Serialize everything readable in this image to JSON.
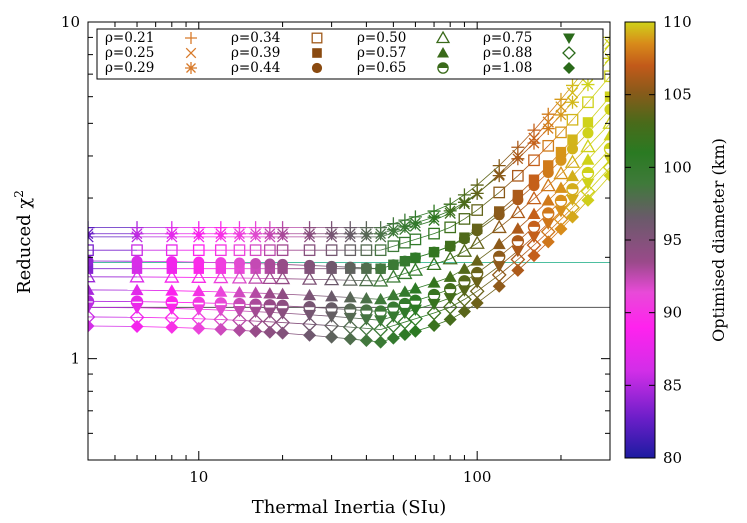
{
  "chart_data": {
    "type": "scatter",
    "xlabel": "Thermal Inertia (SIu)",
    "ylabel_main": "Reduced χ",
    "ylabel_sup": "2",
    "xscale": "log",
    "yscale": "log",
    "xlim": [
      4,
      300
    ],
    "ylim": [
      0.5,
      10
    ],
    "x_ticks": [
      {
        "value": 10,
        "label": "10"
      },
      {
        "value": 100,
        "label": "100"
      }
    ],
    "y_ticks": [
      {
        "value": 1,
        "label": "1"
      },
      {
        "value": 10,
        "label": "10"
      }
    ],
    "x": [
      4,
      6,
      8,
      10,
      12,
      14,
      16,
      18,
      20,
      25,
      30,
      35,
      40,
      45,
      50,
      55,
      60,
      70,
      80,
      90,
      100,
      120,
      140,
      160,
      180,
      200,
      220,
      250,
      300
    ],
    "legend_position": "top",
    "hlines": [
      {
        "y": 1.93,
        "color": "#4dbfa0"
      },
      {
        "y": 1.42,
        "color": "#555555"
      }
    ],
    "colorbar": {
      "label": "Optimised diameter (km)",
      "min": 80,
      "max": 110,
      "ticks": [
        "80",
        "85",
        "90",
        "95",
        "100",
        "105",
        "110"
      ],
      "stops": [
        [
          0.0,
          "#1c1ba0"
        ],
        [
          0.09,
          "#6a1ec8"
        ],
        [
          0.2,
          "#d22ee8"
        ],
        [
          0.3,
          "#ff22ee"
        ],
        [
          0.38,
          "#e84ad8"
        ],
        [
          0.45,
          "#9a4a8a"
        ],
        [
          0.55,
          "#6a5a6a"
        ],
        [
          0.63,
          "#3f7a3a"
        ],
        [
          0.7,
          "#2a7a22"
        ],
        [
          0.77,
          "#4a6a1a"
        ],
        [
          0.84,
          "#8a5a1a"
        ],
        [
          0.9,
          "#c25a1a"
        ],
        [
          0.95,
          "#d88a1a"
        ],
        [
          1.0,
          "#cfd21a"
        ]
      ]
    },
    "series": [
      {
        "name": "ρ=0.21",
        "marker": "plus",
        "y_start": 2.45,
        "y_min": 2.45,
        "y_end": 9.0
      },
      {
        "name": "ρ=0.25",
        "marker": "cross",
        "y_start": 2.3,
        "y_min": 2.3,
        "y_end": 8.6
      },
      {
        "name": "ρ=0.29",
        "marker": "star",
        "y_start": 2.35,
        "y_min": 2.35,
        "y_end": 7.8
      },
      {
        "name": "ρ=0.34",
        "marker": "square-open",
        "y_start": 2.1,
        "y_min": 2.1,
        "y_end": 6.9
      },
      {
        "name": "ρ=0.39",
        "marker": "square",
        "y_start": 1.85,
        "y_min": 1.85,
        "y_end": 6.0
      },
      {
        "name": "ρ=0.44",
        "marker": "circle",
        "y_start": 1.95,
        "y_min": 1.85,
        "y_end": 5.5
      },
      {
        "name": "ρ=0.50",
        "marker": "triangle-open",
        "y_start": 1.75,
        "y_min": 1.7,
        "y_end": 5.0
      },
      {
        "name": "ρ=0.57",
        "marker": "triangle",
        "y_start": 1.6,
        "y_min": 1.5,
        "y_end": 4.6
      },
      {
        "name": "ρ=0.65",
        "marker": "half-circle",
        "y_start": 1.48,
        "y_min": 1.38,
        "y_end": 4.2
      },
      {
        "name": "ρ=0.75",
        "marker": "triangle-down",
        "y_start": 1.42,
        "y_min": 1.3,
        "y_end": 3.9
      },
      {
        "name": "ρ=0.88",
        "marker": "diamond-open",
        "y_start": 1.33,
        "y_min": 1.22,
        "y_end": 3.7
      },
      {
        "name": "ρ=1.08",
        "marker": "diamond",
        "y_start": 1.25,
        "y_min": 1.12,
        "y_end": 3.5
      }
    ]
  }
}
